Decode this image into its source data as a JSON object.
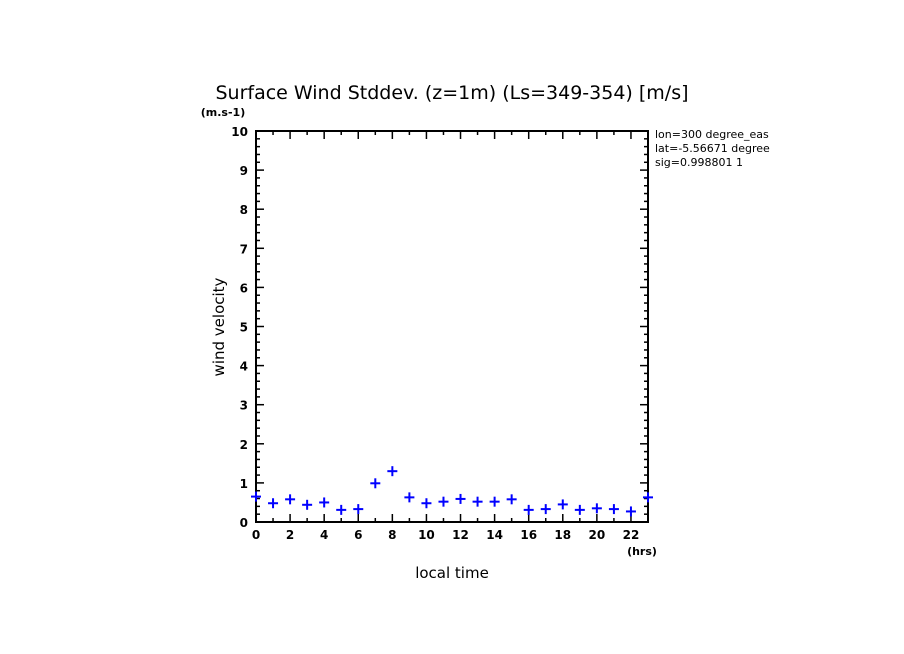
{
  "chart_data": {
    "type": "scatter",
    "title": "Surface Wind Stddev. (z=1m) (Ls=349-354) [m/s]",
    "xlabel": "local time",
    "ylabel": "wind velocity",
    "xunit": "(hrs)",
    "yunit": "(m.s-1)",
    "xlim": [
      0,
      23
    ],
    "ylim": [
      0,
      10
    ],
    "xticks": [
      "0",
      "2",
      "4",
      "6",
      "8",
      "10",
      "12",
      "14",
      "16",
      "18",
      "20",
      "22"
    ],
    "yticks": [
      "0",
      "1",
      "2",
      "3",
      "4",
      "5",
      "6",
      "7",
      "8",
      "9",
      "10"
    ],
    "grid": false,
    "marker": "+",
    "color": "#0000ff",
    "x": [
      0,
      1,
      2,
      3,
      4,
      5,
      6,
      7,
      8,
      9,
      10,
      11,
      12,
      13,
      14,
      15,
      16,
      17,
      18,
      19,
      20,
      21,
      22,
      23
    ],
    "y": [
      0.65,
      0.48,
      0.58,
      0.44,
      0.5,
      0.31,
      0.33,
      0.99,
      1.3,
      0.63,
      0.48,
      0.52,
      0.59,
      0.52,
      0.52,
      0.58,
      0.31,
      0.33,
      0.45,
      0.31,
      0.35,
      0.33,
      0.27,
      0.63
    ],
    "annotations": [
      "lon=300 degree_eas",
      "lat=-5.56671 degree",
      "sig=0.998801 1"
    ]
  }
}
